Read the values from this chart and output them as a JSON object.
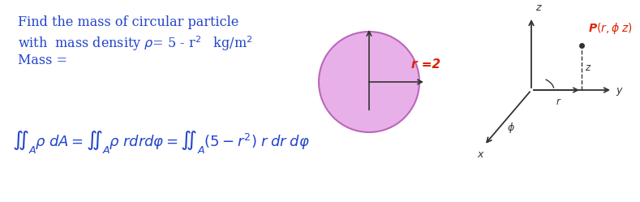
{
  "bg_color": "#ffffff",
  "blue": "#2244cc",
  "red": "#dd2200",
  "dark": "#333333",
  "circle_fill": "#e8b0e8",
  "circle_edge": "#bb66bb",
  "line1": "Find the mass of circular particle",
  "line2_a": "with  mass density ",
  "line2_b": "$\\rho$= 5 - r$^2$   kg/m$^2$",
  "line3": "Mass =",
  "r_label": "r =2",
  "eq": "$\\iint_A \\rho \\; dA = \\iint_A \\rho \\; rdrd\\varphi = \\iint_A (5-r^2) \\; r \\; dr \\; d\\varphi$"
}
